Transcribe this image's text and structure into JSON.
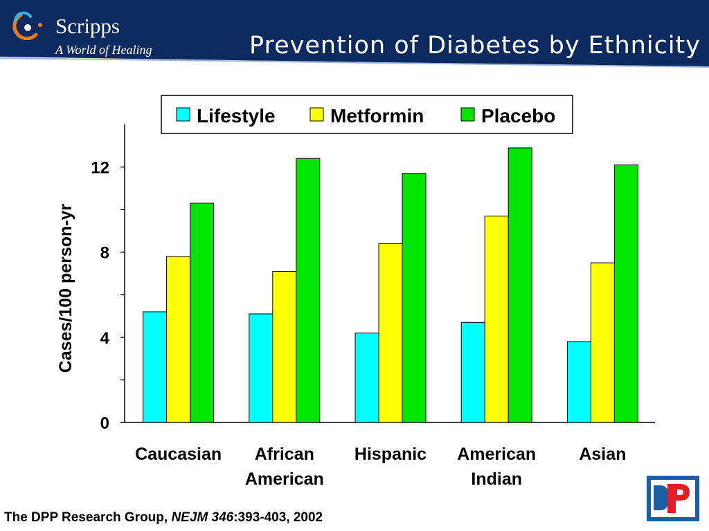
{
  "header": {
    "brand_name": "Scripps",
    "brand_tagline": "A World of Healing",
    "title": "Prevention of Diabetes by Ethnicity",
    "colors": {
      "band": "#0d2a5f",
      "accent_line": "#9db7dc",
      "logo_orange": "#f07a1a",
      "logo_cyan": "#34b6e4"
    }
  },
  "chart_data": {
    "type": "bar",
    "title": "",
    "xlabel": "",
    "ylabel": "Cases/100 person-yr",
    "ylim": [
      0,
      14
    ],
    "yticks": [
      0,
      4,
      8,
      12
    ],
    "grid": false,
    "legend_position": "top",
    "categories": [
      [
        "Caucasian"
      ],
      [
        "African",
        "American"
      ],
      [
        "Hispanic"
      ],
      [
        "American",
        "Indian"
      ],
      [
        "Asian"
      ]
    ],
    "series": [
      {
        "name": "Lifestyle",
        "color": "#00ffff",
        "values": [
          5.2,
          5.1,
          4.2,
          4.7,
          3.8
        ]
      },
      {
        "name": "Metformin",
        "color": "#ffff00",
        "values": [
          7.8,
          7.1,
          8.4,
          9.7,
          7.5
        ]
      },
      {
        "name": "Placebo",
        "color": "#00e600",
        "values": [
          10.3,
          12.4,
          11.7,
          12.9,
          12.1
        ]
      }
    ]
  },
  "footer": {
    "citation_pre": "The DPP Research Group, ",
    "citation_journal": "NEJM 346",
    "citation_post": ":393-403, 2002",
    "logo_colors": {
      "blue": "#1a5fa6",
      "red": "#e02020"
    }
  }
}
